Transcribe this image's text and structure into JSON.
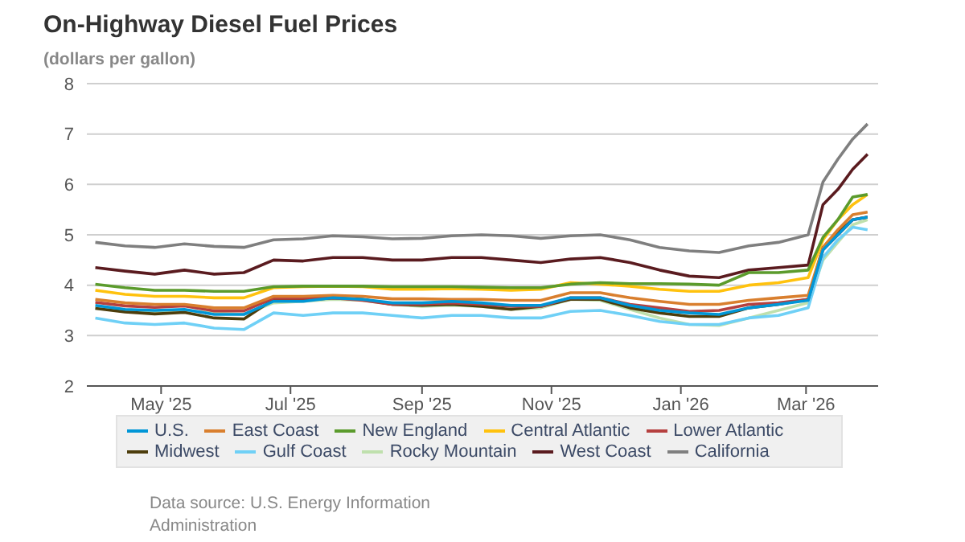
{
  "chart_data": {
    "type": "line",
    "title": "On-Highway Diesel Fuel Prices",
    "ylabel": "(dollars per gallon)",
    "annotations": [
      "Data source: U.S. Energy Information Administration"
    ],
    "x": [
      "2025-03-31",
      "2025-04-14",
      "2025-04-28",
      "2025-05-12",
      "2025-05-26",
      "2025-06-09",
      "2025-06-23",
      "2025-07-07",
      "2025-07-21",
      "2025-08-04",
      "2025-08-18",
      "2025-09-01",
      "2025-09-15",
      "2025-09-29",
      "2025-10-13",
      "2025-10-27",
      "2025-11-10",
      "2025-11-24",
      "2025-12-08",
      "2025-12-22",
      "2026-01-05",
      "2026-01-19",
      "2026-02-02",
      "2026-02-16",
      "2026-03-02",
      "2026-03-09",
      "2026-03-16",
      "2026-03-23",
      "2026-03-30"
    ],
    "xlim": [
      "2025-03-27",
      "2026-04-04"
    ],
    "xticks": [
      {
        "value": "2025-05-01",
        "label": "May '25"
      },
      {
        "value": "2025-07-01",
        "label": "Jul '25"
      },
      {
        "value": "2025-09-01",
        "label": "Sep '25"
      },
      {
        "value": "2025-11-01",
        "label": "Nov '25"
      },
      {
        "value": "2026-01-01",
        "label": "Jan '26"
      },
      {
        "value": "2026-03-01",
        "label": "Mar '26"
      }
    ],
    "ylim": [
      2,
      8
    ],
    "yticks": [
      2,
      3,
      4,
      5,
      6,
      7,
      8
    ],
    "grid": "y",
    "legend": "bottom",
    "marker": "none",
    "line_style": "solid",
    "series": [
      {
        "name": "U.S.",
        "color": "#0096d7",
        "values": [
          3.6,
          3.52,
          3.5,
          3.52,
          3.42,
          3.42,
          3.68,
          3.68,
          3.75,
          3.72,
          3.65,
          3.65,
          3.68,
          3.65,
          3.6,
          3.6,
          3.75,
          3.75,
          3.6,
          3.5,
          3.45,
          3.42,
          3.55,
          3.62,
          3.7,
          4.7,
          5.0,
          5.3,
          5.35
        ]
      },
      {
        "name": "East Coast",
        "color": "#d97f2e",
        "values": [
          3.72,
          3.65,
          3.62,
          3.62,
          3.55,
          3.55,
          3.78,
          3.78,
          3.8,
          3.78,
          3.73,
          3.73,
          3.72,
          3.72,
          3.7,
          3.7,
          3.85,
          3.85,
          3.75,
          3.68,
          3.62,
          3.62,
          3.7,
          3.75,
          3.8,
          4.75,
          5.1,
          5.4,
          5.45
        ]
      },
      {
        "name": "New England",
        "color": "#5b9b2c",
        "values": [
          4.02,
          3.95,
          3.9,
          3.9,
          3.88,
          3.88,
          3.97,
          3.98,
          3.98,
          3.98,
          3.97,
          3.97,
          3.97,
          3.96,
          3.95,
          3.95,
          4.02,
          4.05,
          4.03,
          4.03,
          4.02,
          4.0,
          4.25,
          4.25,
          4.3,
          4.95,
          5.3,
          5.75,
          5.8
        ]
      },
      {
        "name": "Central Atlantic",
        "color": "#ffc20e",
        "values": [
          3.9,
          3.82,
          3.78,
          3.78,
          3.75,
          3.75,
          3.95,
          3.97,
          3.98,
          3.97,
          3.92,
          3.92,
          3.93,
          3.92,
          3.9,
          3.92,
          4.05,
          4.02,
          3.98,
          3.92,
          3.88,
          3.88,
          4.0,
          4.05,
          4.15,
          4.9,
          5.3,
          5.6,
          5.8
        ]
      },
      {
        "name": "Lower Atlantic",
        "color": "#b5403f",
        "values": [
          3.66,
          3.59,
          3.56,
          3.59,
          3.49,
          3.49,
          3.74,
          3.74,
          3.75,
          3.7,
          3.62,
          3.62,
          3.65,
          3.62,
          3.58,
          3.58,
          3.75,
          3.75,
          3.62,
          3.55,
          3.48,
          3.5,
          3.62,
          3.65,
          3.72,
          4.7,
          5.0,
          5.3,
          5.35
        ]
      },
      {
        "name": "Midwest",
        "color": "#4d3d0c",
        "values": [
          3.54,
          3.47,
          3.43,
          3.46,
          3.35,
          3.33,
          3.72,
          3.7,
          3.75,
          3.72,
          3.62,
          3.6,
          3.62,
          3.58,
          3.52,
          3.58,
          3.72,
          3.72,
          3.55,
          3.45,
          3.38,
          3.38,
          3.55,
          3.62,
          3.72,
          4.75,
          5.05,
          5.3,
          5.35
        ]
      },
      {
        "name": "Gulf Coast",
        "color": "#6fd0f6",
        "values": [
          3.35,
          3.25,
          3.22,
          3.25,
          3.15,
          3.12,
          3.45,
          3.4,
          3.45,
          3.45,
          3.4,
          3.35,
          3.4,
          3.4,
          3.35,
          3.35,
          3.48,
          3.5,
          3.4,
          3.28,
          3.22,
          3.22,
          3.35,
          3.4,
          3.55,
          4.55,
          4.9,
          5.15,
          5.1
        ]
      },
      {
        "name": "Rocky Mountain",
        "color": "#bfe0ad",
        "values": [
          3.55,
          3.5,
          3.48,
          3.5,
          3.45,
          3.42,
          3.65,
          3.68,
          3.72,
          3.7,
          3.62,
          3.58,
          3.6,
          3.58,
          3.52,
          3.55,
          3.72,
          3.7,
          3.52,
          3.35,
          3.22,
          3.2,
          3.35,
          3.5,
          3.65,
          4.5,
          4.85,
          5.2,
          5.3
        ]
      },
      {
        "name": "West Coast",
        "color": "#5a1b1f",
        "values": [
          4.35,
          4.28,
          4.22,
          4.3,
          4.22,
          4.25,
          4.5,
          4.48,
          4.55,
          4.55,
          4.5,
          4.5,
          4.55,
          4.55,
          4.5,
          4.45,
          4.52,
          4.55,
          4.45,
          4.3,
          4.18,
          4.15,
          4.3,
          4.35,
          4.4,
          5.6,
          5.9,
          6.3,
          6.6
        ]
      },
      {
        "name": "California",
        "color": "#7f7f7f",
        "values": [
          4.85,
          4.78,
          4.75,
          4.82,
          4.77,
          4.75,
          4.9,
          4.92,
          4.98,
          4.96,
          4.92,
          4.93,
          4.98,
          5.0,
          4.98,
          4.93,
          4.98,
          5.0,
          4.9,
          4.75,
          4.68,
          4.65,
          4.78,
          4.85,
          5.0,
          6.05,
          6.5,
          6.9,
          7.2
        ]
      }
    ]
  }
}
